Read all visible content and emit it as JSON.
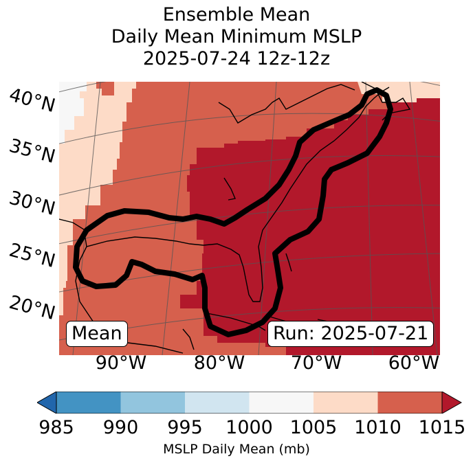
{
  "title": {
    "line1": "Ensemble Mean",
    "line2": "Daily Mean Minimum MSLP",
    "line3": "2025-07-24 12z-12z"
  },
  "map": {
    "lat_labels": [
      "40°N",
      "35°N",
      "30°N",
      "25°N",
      "20°N"
    ],
    "lon_labels": [
      "90°W",
      "80°W",
      "70°W",
      "60°W"
    ],
    "mean_box": "Mean",
    "run_box": "Run: 2025-07-21",
    "field_colors": {
      "1000-1005": "#f7f7f7",
      "1005-1010": "#fddbc7",
      "1010-1015": "#d6604d",
      "1015+": "#b2182b"
    },
    "contour_color": "#000000",
    "coastline_color": "#000000"
  },
  "colorbar": {
    "ticks": [
      "985",
      "990",
      "995",
      "1000",
      "1005",
      "1010",
      "1015"
    ],
    "colors": [
      "#2166ac",
      "#4393c3",
      "#92c5de",
      "#d1e5f0",
      "#f7f7f7",
      "#fddbc7",
      "#d6604d",
      "#b2182b"
    ],
    "label": "MSLP Daily Mean (mb)",
    "extend": "both"
  }
}
